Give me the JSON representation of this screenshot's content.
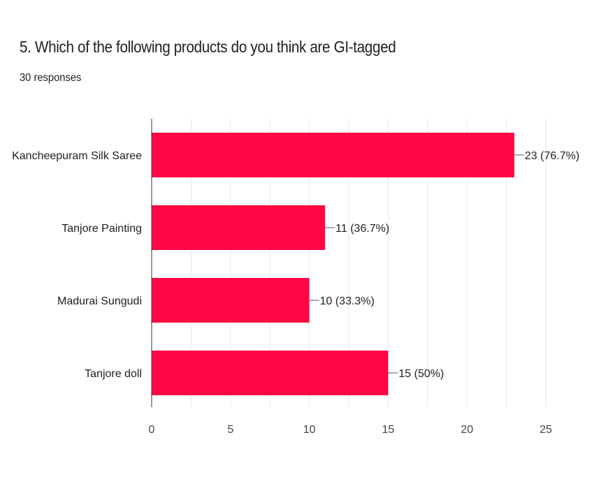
{
  "header": {
    "title": "5. Which of the following products do you think are GI-tagged",
    "subtitle": "30 responses"
  },
  "chart_data": {
    "type": "bar",
    "orientation": "horizontal",
    "categories": [
      "Kancheepuram Silk Saree",
      "Tanjore Painting",
      "Madurai Sungudi",
      "Tanjore doll"
    ],
    "values": [
      23,
      11,
      10,
      15
    ],
    "data_labels": [
      "23 (76.7%)",
      "11 (36.7%)",
      "10 (33.3%)",
      "15 (50%)"
    ],
    "xlim": [
      0,
      25
    ],
    "xticks": [
      0,
      5,
      10,
      15,
      20,
      25
    ],
    "grid": true,
    "bar_color": "#ff0745"
  }
}
